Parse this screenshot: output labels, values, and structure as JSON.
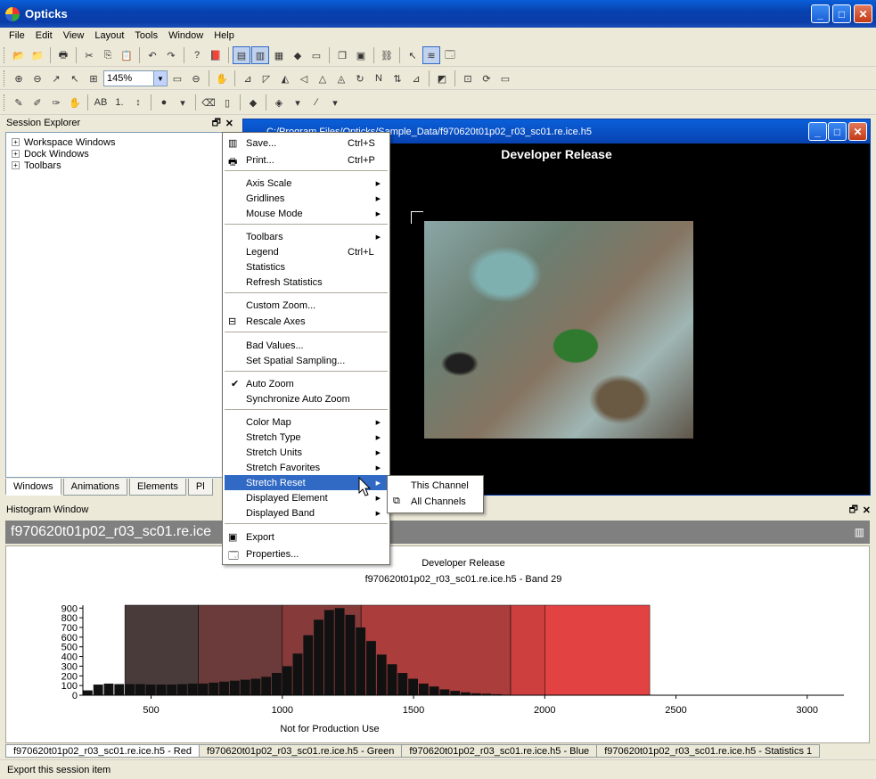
{
  "app": {
    "title": "Opticks"
  },
  "menubar": [
    "File",
    "Edit",
    "View",
    "Layout",
    "Tools",
    "Window",
    "Help"
  ],
  "toolbar": {
    "zoom_value": "145%"
  },
  "session_explorer": {
    "title": "Session Explorer",
    "tree": [
      "Workspace Windows",
      "Dock Windows",
      "Toolbars"
    ],
    "tabs": [
      "Windows",
      "Animations",
      "Elements",
      "Pl"
    ]
  },
  "image_window": {
    "path": "C:/Program Files/Opticks/Sample_Data/f970620t01p02_r03_sc01.re.ice.h5",
    "overlay": "Developer Release"
  },
  "context_menu": {
    "items": [
      {
        "label": "Save...",
        "shortcut": "Ctrl+S"
      },
      {
        "label": "Print...",
        "shortcut": "Ctrl+P"
      },
      {
        "label": "Axis Scale"
      },
      {
        "label": "Gridlines"
      },
      {
        "label": "Mouse Mode"
      },
      {
        "label": "Toolbars"
      },
      {
        "label": "Legend",
        "shortcut": "Ctrl+L"
      },
      {
        "label": "Statistics"
      },
      {
        "label": "Refresh Statistics"
      },
      {
        "label": "Custom Zoom..."
      },
      {
        "label": "Rescale Axes"
      },
      {
        "label": "Bad Values..."
      },
      {
        "label": "Set Spatial Sampling..."
      },
      {
        "label": "Auto Zoom",
        "checked": true
      },
      {
        "label": "Synchronize Auto Zoom"
      },
      {
        "label": "Color Map"
      },
      {
        "label": "Stretch Type"
      },
      {
        "label": "Stretch Units"
      },
      {
        "label": "Stretch Favorites"
      },
      {
        "label": "Stretch Reset"
      },
      {
        "label": "Displayed Element"
      },
      {
        "label": "Displayed Band"
      },
      {
        "label": "Export"
      },
      {
        "label": "Properties..."
      }
    ],
    "submenu": [
      "This Channel",
      "All Channels"
    ]
  },
  "histogram": {
    "window_title": "Histogram Window",
    "name_bar": "f970620t01p02_r03_sc01.re.ice",
    "tabs": [
      "f970620t01p02_r03_sc01.re.ice.h5 - Red",
      "f970620t01p02_r03_sc01.re.ice.h5 - Green",
      "f970620t01p02_r03_sc01.re.ice.h5 - Blue",
      "f970620t01p02_r03_sc01.re.ice.h5 - Statistics 1"
    ]
  },
  "chart_data": {
    "type": "bar",
    "title": "Developer Release",
    "subtitle": "f970620t01p02_r03_sc01.re.ice.h5 - Band 29",
    "xlabel": "Not for Production Use",
    "ylabel": "",
    "xlim": [
      240,
      3140
    ],
    "ylim": [
      0,
      930
    ],
    "xticks": [
      500,
      1000,
      1500,
      2000,
      2500,
      3000
    ],
    "yticks": [
      0,
      100,
      200,
      300,
      400,
      500,
      600,
      700,
      800,
      900
    ],
    "stretch_regions": [
      {
        "x0": 400,
        "x1": 680,
        "color": "#4a3b3b"
      },
      {
        "x0": 680,
        "x1": 1000,
        "color": "#6b3a3a"
      },
      {
        "x0": 1000,
        "x1": 1300,
        "color": "#863a3a"
      },
      {
        "x0": 1300,
        "x1": 1870,
        "color": "#ab3d3d"
      },
      {
        "x0": 1870,
        "x1": 2000,
        "color": "#cd3f3f"
      },
      {
        "x0": 2000,
        "x1": 2400,
        "color": "#e24242"
      }
    ],
    "series": [
      {
        "x": [
          260,
          300,
          340,
          380,
          420,
          460,
          500,
          540,
          580,
          620,
          660,
          700,
          740,
          780,
          820,
          860,
          900,
          940,
          980,
          1020,
          1060,
          1100,
          1140,
          1180,
          1220,
          1260,
          1300,
          1340,
          1380,
          1420,
          1460,
          1500,
          1540,
          1580,
          1620,
          1660,
          1700,
          1740,
          1780,
          1820,
          1860
        ],
        "values": [
          50,
          110,
          120,
          115,
          115,
          115,
          110,
          110,
          110,
          115,
          120,
          120,
          130,
          140,
          150,
          160,
          170,
          190,
          230,
          300,
          430,
          620,
          780,
          880,
          900,
          830,
          700,
          560,
          420,
          320,
          230,
          170,
          120,
          90,
          60,
          45,
          30,
          20,
          15,
          10,
          5
        ]
      }
    ]
  },
  "status": {
    "text": "Export this session item"
  }
}
